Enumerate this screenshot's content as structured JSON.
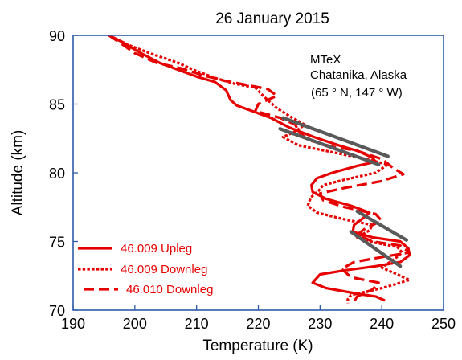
{
  "chart_data": {
    "type": "line",
    "title": "26 January 2015",
    "xlabel": "Temperature (K)",
    "ylabel": "Altitude (km)",
    "xlim": [
      190,
      250
    ],
    "ylim": [
      70,
      90
    ],
    "x_ticks": [
      "190",
      "200",
      "210",
      "220",
      "230",
      "240",
      "250"
    ],
    "y_ticks": [
      "70",
      "75",
      "80",
      "85",
      "90"
    ],
    "grid": false,
    "legend_position": "bottom-left",
    "annotation_lines": [
      "MTeX",
      "Chatanika, Alaska",
      "(65 ° N, 147 ° W)"
    ],
    "colors": {
      "axis": "#2f5aa8",
      "series": "#e60000",
      "fit": "#5a5a5a",
      "text": "#000000",
      "legend_text": "#e60000"
    },
    "series": [
      {
        "name": "46.009 Upleg",
        "style": "solid",
        "points": [
          [
            195.8,
            90.0
          ],
          [
            198.0,
            89.5
          ],
          [
            201.0,
            88.7
          ],
          [
            204.0,
            88.0
          ],
          [
            207.0,
            87.5
          ],
          [
            210.0,
            87.0
          ],
          [
            213.0,
            86.6
          ],
          [
            214.8,
            86.0
          ],
          [
            215.5,
            85.3
          ],
          [
            216.5,
            84.9
          ],
          [
            219.0,
            84.5
          ],
          [
            222.0,
            84.0
          ],
          [
            225.0,
            83.3
          ],
          [
            229.0,
            82.6
          ],
          [
            233.0,
            82.0
          ],
          [
            236.0,
            81.6
          ],
          [
            238.5,
            81.1
          ],
          [
            239.0,
            80.8
          ],
          [
            236.0,
            80.5
          ],
          [
            232.0,
            80.0
          ],
          [
            229.5,
            79.6
          ],
          [
            228.6,
            79.1
          ],
          [
            228.8,
            78.6
          ],
          [
            231.0,
            78.1
          ],
          [
            235.0,
            77.6
          ],
          [
            238.0,
            77.1
          ],
          [
            237.0,
            76.7
          ],
          [
            235.5,
            76.2
          ],
          [
            235.3,
            75.7
          ],
          [
            238.5,
            75.3
          ],
          [
            243.0,
            75.0
          ],
          [
            244.3,
            74.5
          ],
          [
            244.5,
            74.0
          ],
          [
            243.0,
            73.5
          ],
          [
            239.0,
            73.2
          ],
          [
            234.0,
            72.9
          ],
          [
            230.0,
            72.6
          ],
          [
            228.8,
            72.0
          ],
          [
            231.0,
            71.6
          ],
          [
            236.0,
            71.2
          ],
          [
            239.0,
            71.0
          ],
          [
            240.5,
            70.7
          ]
        ]
      },
      {
        "name": "46.009 Downleg",
        "style": "dotted",
        "points": [
          [
            195.8,
            90.0
          ],
          [
            199.0,
            89.3
          ],
          [
            203.0,
            88.6
          ],
          [
            207.0,
            88.0
          ],
          [
            210.0,
            87.4
          ],
          [
            213.0,
            86.9
          ],
          [
            216.0,
            86.5
          ],
          [
            219.5,
            86.2
          ],
          [
            221.0,
            85.5
          ],
          [
            223.0,
            84.7
          ],
          [
            225.5,
            84.0
          ],
          [
            227.5,
            83.5
          ],
          [
            226.0,
            83.0
          ],
          [
            224.0,
            82.6
          ],
          [
            226.5,
            82.0
          ],
          [
            232.0,
            81.5
          ],
          [
            237.5,
            81.0
          ],
          [
            241.0,
            80.6
          ],
          [
            239.0,
            80.0
          ],
          [
            234.0,
            79.5
          ],
          [
            230.5,
            79.1
          ],
          [
            229.8,
            78.7
          ],
          [
            228.5,
            78.2
          ],
          [
            228.0,
            77.6
          ],
          [
            229.5,
            77.1
          ],
          [
            234.0,
            76.6
          ],
          [
            238.5,
            76.2
          ],
          [
            238.0,
            75.8
          ],
          [
            236.0,
            75.3
          ],
          [
            239.0,
            74.9
          ],
          [
            242.5,
            74.6
          ],
          [
            243.3,
            74.2
          ],
          [
            242.0,
            73.7
          ],
          [
            240.0,
            73.1
          ],
          [
            242.0,
            72.7
          ],
          [
            244.5,
            72.2
          ],
          [
            240.0,
            71.6
          ],
          [
            235.0,
            71.1
          ],
          [
            234.5,
            70.8
          ],
          [
            234.5,
            70.5
          ]
        ]
      },
      {
        "name": "46.010 Downleg",
        "style": "dashed",
        "points": [
          [
            195.8,
            90.0
          ],
          [
            197.5,
            89.5
          ],
          [
            200.0,
            88.7
          ],
          [
            203.5,
            88.0
          ],
          [
            207.5,
            87.6
          ],
          [
            211.0,
            87.1
          ],
          [
            214.5,
            86.7
          ],
          [
            218.0,
            86.4
          ],
          [
            221.5,
            86.1
          ],
          [
            223.0,
            85.6
          ],
          [
            220.0,
            85.0
          ],
          [
            219.5,
            84.5
          ],
          [
            223.5,
            84.0
          ],
          [
            226.0,
            83.5
          ],
          [
            226.5,
            83.0
          ],
          [
            228.0,
            82.4
          ],
          [
            232.0,
            81.9
          ],
          [
            236.0,
            81.6
          ],
          [
            240.0,
            81.0
          ],
          [
            242.0,
            80.3
          ],
          [
            243.5,
            79.9
          ],
          [
            240.0,
            79.4
          ],
          [
            234.0,
            78.9
          ],
          [
            230.0,
            78.5
          ],
          [
            230.5,
            78.0
          ],
          [
            234.0,
            77.5
          ],
          [
            239.0,
            77.0
          ],
          [
            240.0,
            76.5
          ],
          [
            237.5,
            76.0
          ],
          [
            236.0,
            75.5
          ],
          [
            238.5,
            75.0
          ],
          [
            243.0,
            74.7
          ],
          [
            244.5,
            74.2
          ],
          [
            240.5,
            73.9
          ],
          [
            235.5,
            73.5
          ],
          [
            233.5,
            73.0
          ],
          [
            235.0,
            72.4
          ],
          [
            239.5,
            72.0
          ],
          [
            238.5,
            71.5
          ],
          [
            236.0,
            71.0
          ],
          [
            235.5,
            70.6
          ]
        ]
      }
    ],
    "fit_segments": [
      [
        [
          224.0,
          84.0
        ],
        [
          241.0,
          81.2
        ]
      ],
      [
        [
          223.5,
          83.2
        ],
        [
          239.5,
          80.6
        ]
      ],
      [
        [
          236.0,
          77.2
        ],
        [
          244.0,
          75.1
        ]
      ],
      [
        [
          235.0,
          75.7
        ],
        [
          243.0,
          73.2
        ]
      ]
    ]
  }
}
